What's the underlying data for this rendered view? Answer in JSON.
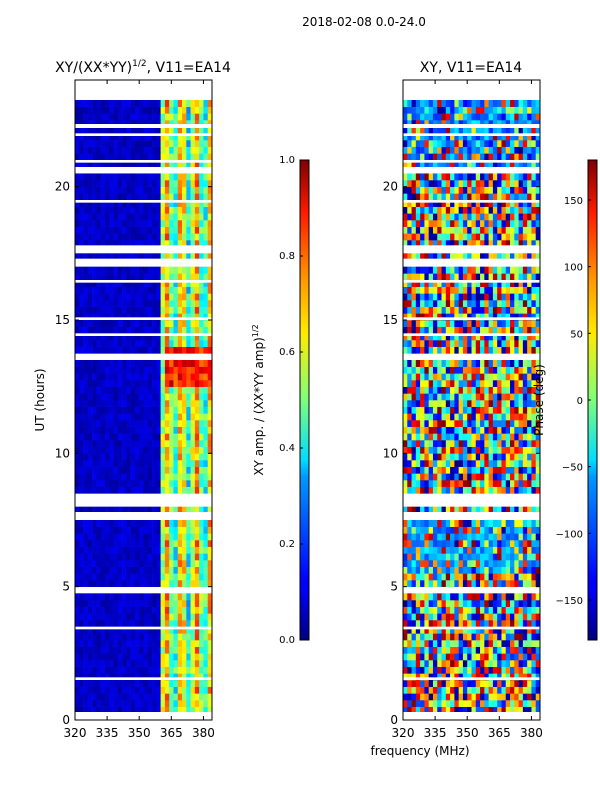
{
  "suptitle": "2018-02-08 0.0-24.0",
  "xlabel_shared": "frequency (MHz)",
  "chart_data": [
    {
      "type": "heatmap",
      "title": "XY/(XX*YY)",
      "title_exponent": "1/2",
      "title_suffix": ", V11=EA14",
      "xlabel": "",
      "ylabel": "UT (hours)",
      "xlim": [
        320,
        384
      ],
      "ylim": [
        0,
        24
      ],
      "xticks": [
        320,
        335,
        350,
        365,
        380
      ],
      "yticks": [
        0,
        5,
        10,
        15,
        20
      ],
      "colorbar": {
        "label": "XY amp. / (XX*YY amp)",
        "label_exponent": "1/2",
        "range": [
          0.0,
          1.0
        ],
        "ticks": [
          "0.0",
          "0.2",
          "0.4",
          "0.6",
          "0.8",
          "1.0"
        ],
        "colormap": "jet"
      },
      "description": "Normalized XY amplitude; mostly low (~0.05) below 360 MHz, elevated bands (0.4-0.9) near 362-382 MHz"
    },
    {
      "type": "heatmap",
      "title": "XY, V11=EA14",
      "xlabel": "",
      "ylabel": "",
      "xlim": [
        320,
        384
      ],
      "ylim": [
        0,
        24
      ],
      "xticks": [
        320,
        335,
        350,
        365,
        380
      ],
      "yticks": [
        0,
        5,
        10,
        15,
        20
      ],
      "colorbar": {
        "label": "Phase (deg)",
        "range": [
          -180,
          180
        ],
        "ticks": [
          "−150",
          "−100",
          "−50",
          "0",
          "50",
          "100",
          "150"
        ],
        "colormap": "jet"
      },
      "description": "XY phase in degrees; noisy full-range phase across band with horizontal time striping"
    }
  ]
}
